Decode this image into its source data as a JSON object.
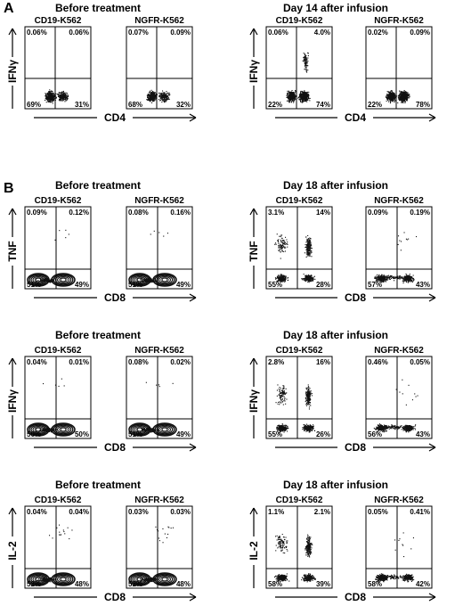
{
  "panels": [
    {
      "letter": "A",
      "x_marker": "CD4",
      "y_marker": "IFNγ",
      "groups": [
        {
          "title": "Before treatment",
          "plots": [
            {
              "sample": "CD19-K562",
              "quadrants": {
                "ul": "0.06%",
                "ur": "0.06%",
                "ll": "69%",
                "lr": "31%"
              }
            },
            {
              "sample": "NGFR-K562",
              "quadrants": {
                "ul": "0.07%",
                "ur": "0.09%",
                "ll": "68%",
                "lr": "32%"
              }
            }
          ]
        },
        {
          "title": "Day 14 after infusion",
          "plots": [
            {
              "sample": "CD19-K562",
              "quadrants": {
                "ul": "0.06%",
                "ur": "4.0%",
                "ll": "22%",
                "lr": "74%"
              }
            },
            {
              "sample": "NGFR-K562",
              "quadrants": {
                "ul": "0.02%",
                "ur": "0.09%",
                "ll": "22%",
                "lr": "78%"
              }
            }
          ]
        }
      ]
    },
    {
      "letter": "B",
      "x_marker": "CD8",
      "y_marker": "TNF",
      "groups": [
        {
          "title": "Before treatment",
          "plots": [
            {
              "sample": "CD19-K562",
              "quadrants": {
                "ul": "0.09%",
                "ur": "0.12%",
                "ll": "51%",
                "lr": "49%"
              }
            },
            {
              "sample": "NGFR-K562",
              "quadrants": {
                "ul": "0.08%",
                "ur": "0.16%",
                "ll": "51%",
                "lr": "49%"
              }
            }
          ]
        },
        {
          "title": "Day 18 after infusion",
          "plots": [
            {
              "sample": "CD19-K562",
              "quadrants": {
                "ul": "3.1%",
                "ur": "14%",
                "ll": "55%",
                "lr": "28%"
              }
            },
            {
              "sample": "NGFR-K562",
              "quadrants": {
                "ul": "0.09%",
                "ur": "0.19%",
                "ll": "57%",
                "lr": "43%"
              }
            }
          ]
        }
      ]
    },
    {
      "letter": "",
      "x_marker": "CD8",
      "y_marker": "IFNγ",
      "groups": [
        {
          "title": "Before treatment",
          "plots": [
            {
              "sample": "CD19-K562",
              "quadrants": {
                "ul": "0.04%",
                "ur": "0.01%",
                "ll": "50%",
                "lr": "50%"
              }
            },
            {
              "sample": "NGFR-K562",
              "quadrants": {
                "ul": "0.08%",
                "ur": "0.02%",
                "ll": "51%",
                "lr": "49%"
              }
            }
          ]
        },
        {
          "title": "Day 18 after infusion",
          "plots": [
            {
              "sample": "CD19-K562",
              "quadrants": {
                "ul": "2.8%",
                "ur": "16%",
                "ll": "55%",
                "lr": "26%"
              }
            },
            {
              "sample": "NGFR-K562",
              "quadrants": {
                "ul": "0.46%",
                "ur": "0.05%",
                "ll": "56%",
                "lr": "43%"
              }
            }
          ]
        }
      ]
    },
    {
      "letter": "",
      "x_marker": "CD8",
      "y_marker": "IL-2",
      "groups": [
        {
          "title": "Before treatment",
          "plots": [
            {
              "sample": "CD19-K562",
              "quadrants": {
                "ul": "0.04%",
                "ur": "0.04%",
                "ll": "52%",
                "lr": "48%"
              }
            },
            {
              "sample": "NGFR-K562",
              "quadrants": {
                "ul": "0.03%",
                "ur": "0.03%",
                "ll": "52%",
                "lr": "48%"
              }
            }
          ]
        },
        {
          "title": "Day 18 after infusion",
          "plots": [
            {
              "sample": "CD19-K562",
              "quadrants": {
                "ul": "1.1%",
                "ur": "2.1%",
                "ll": "58%",
                "lr": "39%"
              }
            },
            {
              "sample": "NGFR-K562",
              "quadrants": {
                "ul": "0.05%",
                "ur": "0.41%",
                "ll": "58%",
                "lr": "42%"
              }
            }
          ]
        }
      ]
    }
  ],
  "chart_data": [
    {
      "type": "scatter",
      "panel": "A",
      "title": "Before treatment",
      "subplots": [
        "CD19-K562",
        "NGFR-K562"
      ],
      "xlabel": "CD4",
      "ylabel": "IFNγ",
      "quadrant_percentages": [
        {
          "ul": 0.06,
          "ur": 0.06,
          "ll": 69,
          "lr": 31
        },
        {
          "ul": 0.07,
          "ur": 0.09,
          "ll": 68,
          "lr": 32
        }
      ]
    },
    {
      "type": "scatter",
      "panel": "A",
      "title": "Day 14 after infusion",
      "subplots": [
        "CD19-K562",
        "NGFR-K562"
      ],
      "xlabel": "CD4",
      "ylabel": "IFNγ",
      "quadrant_percentages": [
        {
          "ul": 0.06,
          "ur": 4.0,
          "ll": 22,
          "lr": 74
        },
        {
          "ul": 0.02,
          "ur": 0.09,
          "ll": 22,
          "lr": 78
        }
      ]
    },
    {
      "type": "scatter",
      "panel": "B",
      "title": "Before treatment",
      "subplots": [
        "CD19-K562",
        "NGFR-K562"
      ],
      "xlabel": "CD8",
      "ylabel": "TNF",
      "quadrant_percentages": [
        {
          "ul": 0.09,
          "ur": 0.12,
          "ll": 51,
          "lr": 49
        },
        {
          "ul": 0.08,
          "ur": 0.16,
          "ll": 51,
          "lr": 49
        }
      ]
    },
    {
      "type": "scatter",
      "panel": "B",
      "title": "Day 18 after infusion",
      "subplots": [
        "CD19-K562",
        "NGFR-K562"
      ],
      "xlabel": "CD8",
      "ylabel": "TNF",
      "quadrant_percentages": [
        {
          "ul": 3.1,
          "ur": 14,
          "ll": 55,
          "lr": 28
        },
        {
          "ul": 0.09,
          "ur": 0.19,
          "ll": 57,
          "lr": 43
        }
      ]
    },
    {
      "type": "scatter",
      "panel": "B",
      "title": "Before treatment",
      "subplots": [
        "CD19-K562",
        "NGFR-K562"
      ],
      "xlabel": "CD8",
      "ylabel": "IFNγ",
      "quadrant_percentages": [
        {
          "ul": 0.04,
          "ur": 0.01,
          "ll": 50,
          "lr": 50
        },
        {
          "ul": 0.08,
          "ur": 0.02,
          "ll": 51,
          "lr": 49
        }
      ]
    },
    {
      "type": "scatter",
      "panel": "B",
      "title": "Day 18 after infusion",
      "subplots": [
        "CD19-K562",
        "NGFR-K562"
      ],
      "xlabel": "CD8",
      "ylabel": "IFNγ",
      "quadrant_percentages": [
        {
          "ul": 2.8,
          "ur": 16,
          "ll": 55,
          "lr": 26
        },
        {
          "ul": 0.46,
          "ur": 0.05,
          "ll": 56,
          "lr": 43
        }
      ]
    },
    {
      "type": "scatter",
      "panel": "B",
      "title": "Before treatment",
      "subplots": [
        "CD19-K562",
        "NGFR-K562"
      ],
      "xlabel": "CD8",
      "ylabel": "IL-2",
      "quadrant_percentages": [
        {
          "ul": 0.04,
          "ur": 0.04,
          "ll": 52,
          "lr": 48
        },
        {
          "ul": 0.03,
          "ur": 0.03,
          "ll": 52,
          "lr": 48
        }
      ]
    },
    {
      "type": "scatter",
      "panel": "B",
      "title": "Day 18 after infusion",
      "subplots": [
        "CD19-K562",
        "NGFR-K562"
      ],
      "xlabel": "CD8",
      "ylabel": "IL-2",
      "quadrant_percentages": [
        {
          "ul": 1.1,
          "ur": 2.1,
          "ll": 58,
          "lr": 39
        },
        {
          "ul": 0.05,
          "ur": 0.41,
          "ll": 58,
          "lr": 42
        }
      ]
    }
  ]
}
